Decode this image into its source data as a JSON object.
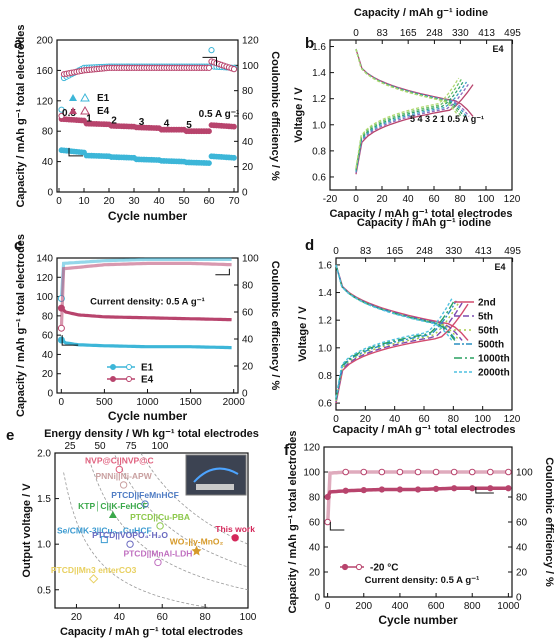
{
  "panels": {
    "a": {
      "letter": "a"
    },
    "b": {
      "letter": "b"
    },
    "c": {
      "letter": "c"
    },
    "d": {
      "letter": "d"
    },
    "e": {
      "letter": "e"
    },
    "f": {
      "letter": "f"
    }
  },
  "chart_data": [
    {
      "panel": "a",
      "type": "scatter",
      "xlabel": "Cycle number",
      "ylabel": "Capacity / mAh g⁻¹ total electrodes",
      "y2label": "Coulombic efficiency / %",
      "xlim": [
        0,
        70
      ],
      "ylim": [
        0,
        200
      ],
      "y2lim": [
        0,
        120
      ],
      "xticks": [
        "0",
        "10",
        "20",
        "30",
        "40",
        "50",
        "60",
        "70"
      ],
      "yticks": [
        "0",
        "40",
        "80",
        "120",
        "160",
        "200"
      ],
      "y2ticks": [
        "0",
        "20",
        "40",
        "60",
        "80",
        "100",
        "120"
      ],
      "rate_labels": [
        {
          "text": "0.5",
          "x": 4,
          "y": 100
        },
        {
          "text": "1",
          "x": 12,
          "y": 93
        },
        {
          "text": "2",
          "x": 22,
          "y": 90
        },
        {
          "text": "3",
          "x": 33,
          "y": 88
        },
        {
          "text": "4",
          "x": 43,
          "y": 86
        },
        {
          "text": "5",
          "x": 52,
          "y": 84
        },
        {
          "text": "0.5 A g⁻¹",
          "x": 64,
          "y": 99
        }
      ],
      "legend": {
        "position": "middle-left",
        "entries": [
          "E1",
          "E4"
        ]
      },
      "series": [
        {
          "name": "E1",
          "color": "#3db6d8",
          "capacity": [
            [
              1,
              55
            ],
            [
              10,
              52
            ],
            [
              11,
              48
            ],
            [
              20,
              47
            ],
            [
              21,
              46
            ],
            [
              30,
              45
            ],
            [
              31,
              43
            ],
            [
              40,
              42
            ],
            [
              41,
              41
            ],
            [
              50,
              40
            ],
            [
              51,
              39
            ],
            [
              60,
              38
            ],
            [
              61,
              47
            ],
            [
              70,
              45
            ]
          ],
          "ce": [
            [
              1,
              65
            ],
            [
              2,
              90
            ],
            [
              10,
              98
            ],
            [
              20,
              99
            ],
            [
              30,
              99
            ],
            [
              40,
              99
            ],
            [
              50,
              99
            ],
            [
              60,
              99
            ],
            [
              61,
              112
            ],
            [
              62,
              99
            ],
            [
              70,
              98
            ]
          ]
        },
        {
          "name": "E4",
          "color": "#b8446d",
          "capacity": [
            [
              1,
              96
            ],
            [
              10,
              94
            ],
            [
              11,
              90
            ],
            [
              20,
              89
            ],
            [
              21,
              87
            ],
            [
              30,
              86
            ],
            [
              31,
              85
            ],
            [
              40,
              84
            ],
            [
              41,
              82
            ],
            [
              50,
              82
            ],
            [
              51,
              80
            ],
            [
              60,
              80
            ],
            [
              61,
              88
            ],
            [
              70,
              86
            ]
          ],
          "ce": [
            [
              1,
              60
            ],
            [
              2,
              93
            ],
            [
              10,
              96
            ],
            [
              20,
              98
            ],
            [
              30,
              98
            ],
            [
              40,
              98
            ],
            [
              50,
              98
            ],
            [
              60,
              98
            ],
            [
              61,
              103
            ],
            [
              70,
              97
            ]
          ]
        }
      ]
    },
    {
      "panel": "b",
      "type": "line",
      "title_top": "Capacity / mAh g⁻¹ iodine",
      "xlabel": "Capacity / mAh g⁻¹ total electrodes",
      "ylabel": "Voltage / V",
      "xlim": [
        -20,
        120
      ],
      "ylim": [
        0.5,
        1.65
      ],
      "xticks": [
        "-20",
        "0",
        "20",
        "40",
        "60",
        "80",
        "100",
        "120"
      ],
      "top_ticks": [
        "0",
        "83",
        "165",
        "248",
        "330",
        "413",
        "495"
      ],
      "yticks": [
        "0.6",
        "0.8",
        "1.0",
        "1.2",
        "1.4",
        "1.6"
      ],
      "corner_label": "E4",
      "rate_annotation": "5  4  3  2  1  0.5 A g⁻¹",
      "curves": [
        {
          "rate": "0.5",
          "color": "#b8446d",
          "capacity": 90
        },
        {
          "rate": "1",
          "color": "#8e6bbd",
          "capacity": 87
        },
        {
          "rate": "2",
          "color": "#3aa0c4",
          "capacity": 85
        },
        {
          "rate": "3",
          "color": "#2e9f6a",
          "capacity": 83
        },
        {
          "rate": "4",
          "color": "#6cc26c",
          "capacity": 81
        },
        {
          "rate": "5",
          "color": "#b0d870",
          "capacity": 79
        }
      ]
    },
    {
      "panel": "c",
      "type": "scatter",
      "xlabel": "Cycle number",
      "ylabel": "Capacity / mAh g⁻¹ total electrodes",
      "y2label": "Coulombic efficiency / %",
      "xlim": [
        0,
        2000
      ],
      "ylim": [
        0,
        140
      ],
      "y2lim": [
        0,
        100
      ],
      "xticks": [
        "0",
        "500",
        "1000",
        "1500",
        "2000"
      ],
      "yticks": [
        "0",
        "20",
        "40",
        "60",
        "80",
        "100",
        "120",
        "140"
      ],
      "y2ticks": [
        "0",
        "20",
        "40",
        "60",
        "80",
        "100"
      ],
      "annotation": "Current density: 0.5 A g⁻¹",
      "legend": {
        "position": "bottom-left",
        "entries": [
          "E1",
          "E4"
        ]
      },
      "series": [
        {
          "name": "E1",
          "color": "#3db6d8",
          "capacity": [
            [
              1,
              55
            ],
            [
              50,
              52
            ],
            [
              200,
              50
            ],
            [
              500,
              49
            ],
            [
              1000,
              48
            ],
            [
              1500,
              48
            ],
            [
              2000,
              47
            ]
          ],
          "ce": [
            [
              1,
              70
            ],
            [
              20,
              96
            ],
            [
              500,
              98
            ],
            [
              1000,
              99
            ],
            [
              1500,
              99
            ],
            [
              2000,
              99
            ]
          ]
        },
        {
          "name": "E4",
          "color": "#b8446d",
          "capacity": [
            [
              1,
              88
            ],
            [
              50,
              84
            ],
            [
              200,
              81
            ],
            [
              500,
              79
            ],
            [
              1000,
              78
            ],
            [
              1500,
              77
            ],
            [
              2000,
              76
            ]
          ],
          "ce": [
            [
              1,
              48
            ],
            [
              20,
              92
            ],
            [
              500,
              95
            ],
            [
              1000,
              96
            ],
            [
              1500,
              96
            ],
            [
              2000,
              95
            ]
          ]
        }
      ]
    },
    {
      "panel": "d",
      "type": "line",
      "title_top": "Capacity / mAh g⁻¹ iodine",
      "xlabel": "Capacity / mAh g⁻¹ total electrodes",
      "ylabel": "Voltage / V",
      "xlim": [
        0,
        120
      ],
      "ylim": [
        0.55,
        1.65
      ],
      "xticks": [
        "0",
        "20",
        "40",
        "60",
        "80",
        "100",
        "120"
      ],
      "top_ticks": [
        "0",
        "83",
        "165",
        "248",
        "330",
        "413",
        "495"
      ],
      "yticks": [
        "0.6",
        "0.8",
        "1.0",
        "1.2",
        "1.4",
        "1.6"
      ],
      "corner_label": "E4",
      "legend": {
        "position": "right",
        "entries": [
          "2nd",
          "5th",
          "50th",
          "500th",
          "1000th",
          "2000th"
        ]
      },
      "curves": [
        {
          "name": "2nd",
          "color": "#d24b6e",
          "dash": "",
          "capacity": 90
        },
        {
          "name": "5th",
          "color": "#7a4bb0",
          "dash": "6,3",
          "capacity": 86
        },
        {
          "name": "50th",
          "color": "#a8cc4a",
          "dash": "2,3",
          "capacity": 84
        },
        {
          "name": "500th",
          "color": "#2a8fc0",
          "dash": "6,2,2,2",
          "capacity": 82
        },
        {
          "name": "1000th",
          "color": "#28a060",
          "dash": "8,3,2,3",
          "capacity": 81
        },
        {
          "name": "2000th",
          "color": "#4fc0e0",
          "dash": "3,2",
          "capacity": 79
        }
      ]
    },
    {
      "panel": "e",
      "type": "scatter",
      "title_top": "Energy density / Wh kg⁻¹ total electrodes",
      "xlabel": "Capacity / mAh g⁻¹ total electrodes",
      "ylabel": "Output voltage / V",
      "xlim": [
        10,
        100
      ],
      "ylim": [
        0.3,
        2.0
      ],
      "xticks": [
        "20",
        "40",
        "60",
        "80",
        "100"
      ],
      "yticks": [
        "0.5",
        "1.0",
        "1.5",
        "2.0"
      ],
      "top_ticks": [
        "25",
        "50",
        "75",
        "100"
      ],
      "points": [
        {
          "label": "NVP@C||NVP@C",
          "x": 40,
          "y": 1.82,
          "color": "#e0607e",
          "marker": "hexagon"
        },
        {
          "label": "PNNi||Ni-APW",
          "x": 42,
          "y": 1.65,
          "color": "#c9a0a0",
          "marker": "circle"
        },
        {
          "label": "KTP│C||K-FeHCF",
          "x": 37,
          "y": 1.32,
          "color": "#3aa84a",
          "marker": "triangle"
        },
        {
          "label": "PTCD||FeMnHCF",
          "x": 52,
          "y": 1.44,
          "color": "#4f7cc4",
          "marker": "triangle-left"
        },
        {
          "label": "Se/CMK-3||Cu₀.₃CuHCF",
          "x": 33,
          "y": 1.05,
          "color": "#3a9ad0",
          "marker": "square"
        },
        {
          "label": "PTCD||Cu-PBA",
          "x": 59,
          "y": 1.2,
          "color": "#8cc84b",
          "marker": "circle"
        },
        {
          "label": "This work",
          "x": 94,
          "y": 1.07,
          "color": "#d4285a",
          "marker": "circle"
        },
        {
          "label": "PTCD||VOPO₄·H₂O",
          "x": 45,
          "y": 1.0,
          "color": "#6a6ac0",
          "marker": "circle"
        },
        {
          "label": "WO₃||γ-MnO₂",
          "x": 76,
          "y": 0.93,
          "color": "#d69a2a",
          "marker": "star"
        },
        {
          "label": "PTCD||MnAl-LDH",
          "x": 58,
          "y": 0.8,
          "color": "#c070c0",
          "marker": "circle"
        },
        {
          "label": "PTCD||Mn3 enterCO3",
          "x": 28,
          "y": 0.62,
          "color": "#e8d060",
          "marker": "diamond"
        }
      ]
    },
    {
      "panel": "f",
      "type": "scatter",
      "xlabel": "Cycle number",
      "ylabel": "Capacity / mAh g⁻¹ total electrodes",
      "y2label": "Coulombic efficiency / %",
      "xlim": [
        0,
        1000
      ],
      "ylim": [
        0,
        120
      ],
      "y2lim": [
        0,
        100
      ],
      "xticks": [
        "0",
        "200",
        "400",
        "600",
        "800",
        "1000"
      ],
      "yticks": [
        "0",
        "20",
        "40",
        "60",
        "80",
        "100",
        "120"
      ],
      "y2ticks": [
        "0",
        "20",
        "40",
        "60",
        "80",
        "100"
      ],
      "legend": {
        "position": "bottom-left",
        "entries": [
          "-20 °C"
        ]
      },
      "annotation": "Current density: 0.5 A g⁻¹",
      "series": [
        {
          "name": "-20 °C",
          "color": "#b8446d",
          "capacity": [
            [
              1,
              80
            ],
            [
              10,
              84
            ],
            [
              100,
              85
            ],
            [
              300,
              86
            ],
            [
              500,
              86
            ],
            [
              700,
              87
            ],
            [
              1000,
              87
            ]
          ],
          "ce": [
            [
              1,
              60
            ],
            [
              5,
              99
            ],
            [
              100,
              100
            ],
            [
              500,
              100
            ],
            [
              1000,
              100
            ]
          ]
        }
      ]
    }
  ]
}
